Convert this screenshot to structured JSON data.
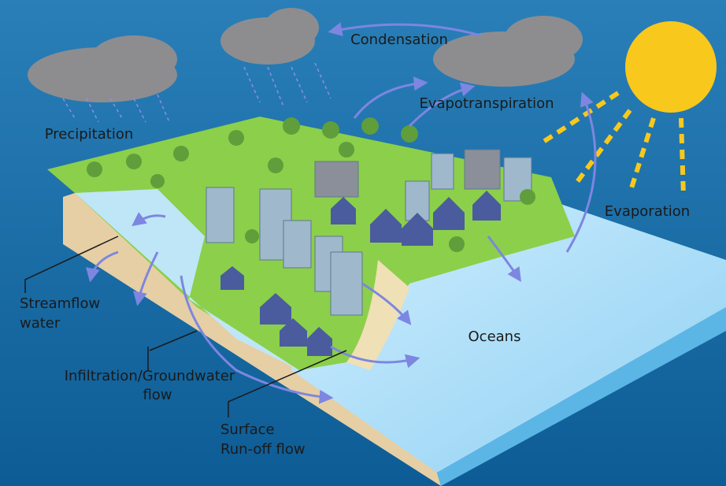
{
  "labels": {
    "condensation": "Condensation",
    "evapotranspiration": "Evapotranspiration",
    "precipitation": "Precipitation",
    "evaporation": "Evaporation",
    "streamflow": [
      "Streamflow",
      "water"
    ],
    "infiltration": [
      "Infiltration/Groundwater",
      "flow"
    ],
    "oceans": "Oceans",
    "runoff": [
      "Surface",
      "Run-off flow"
    ]
  }
}
